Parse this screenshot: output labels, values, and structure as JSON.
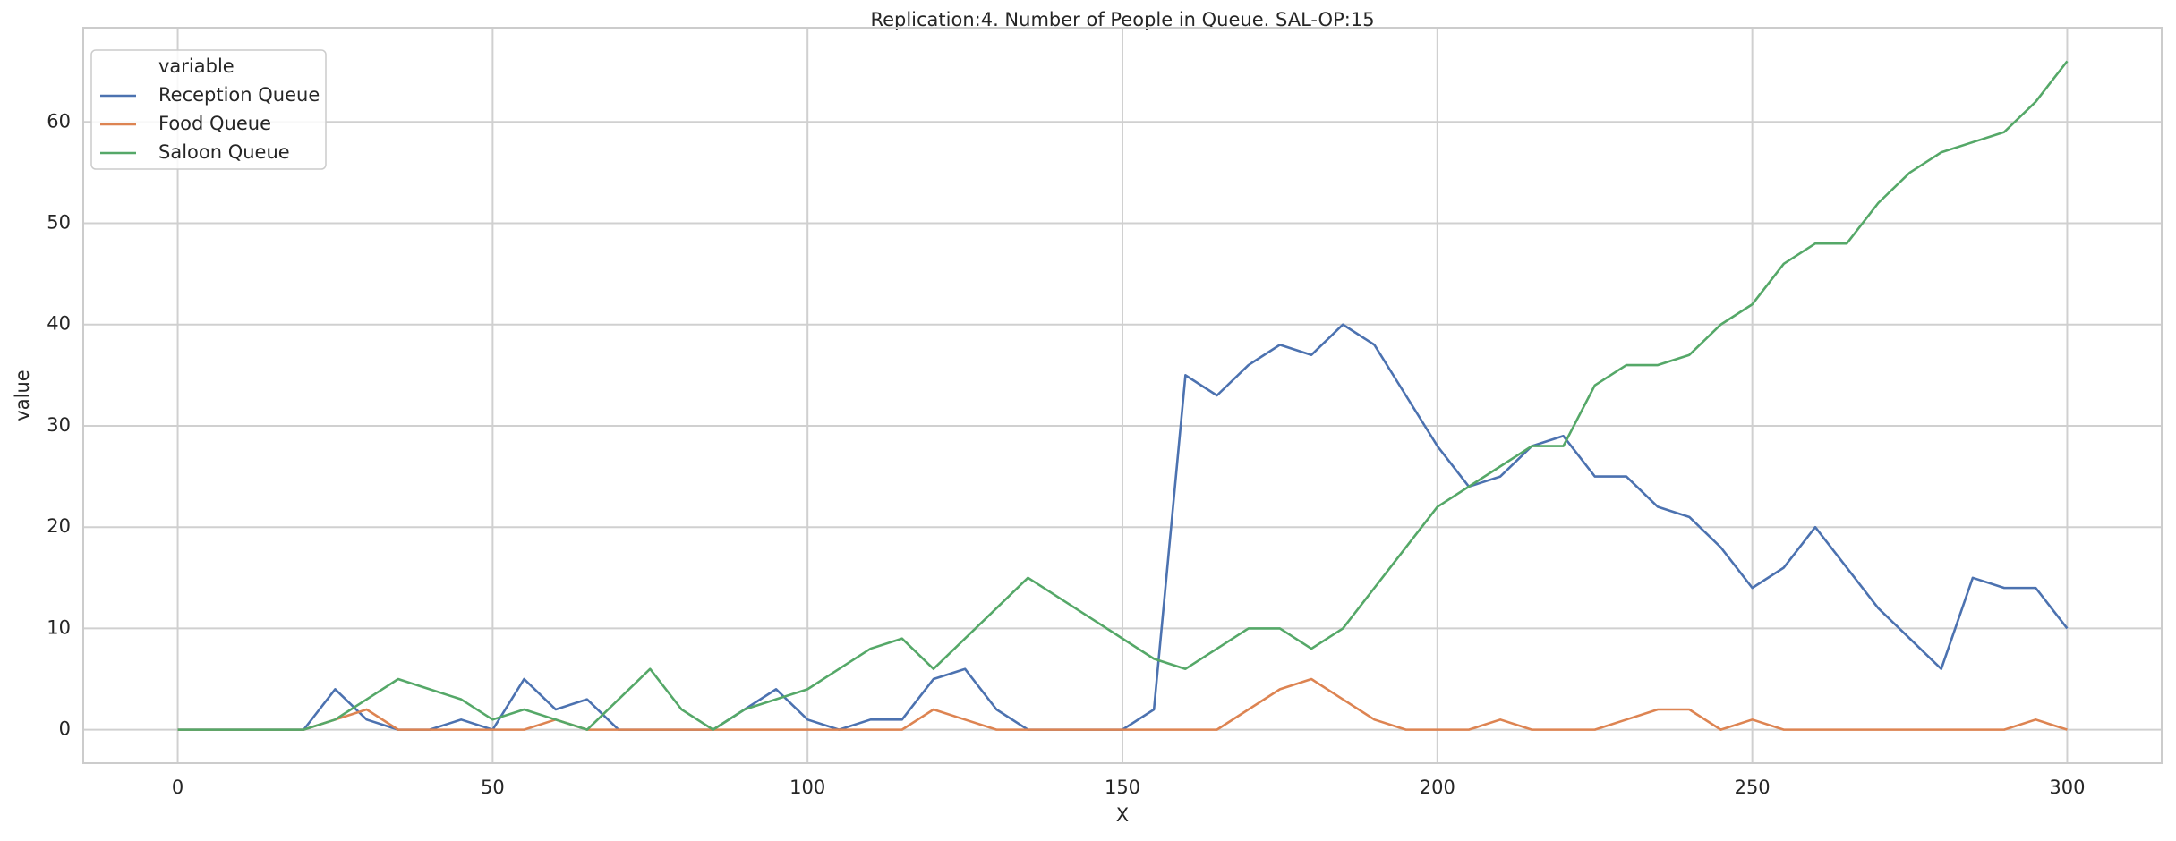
{
  "chart_data": {
    "type": "line",
    "title": "Replication:4. Number of People in Queue. SAL-OP:15",
    "x_label": "X",
    "y_label": "value",
    "legend_title": "variable",
    "legend": "upper left",
    "grid": true,
    "x": [
      0,
      5,
      10,
      15,
      20,
      25,
      30,
      35,
      40,
      45,
      50,
      55,
      60,
      65,
      70,
      75,
      80,
      85,
      90,
      95,
      100,
      105,
      110,
      115,
      120,
      125,
      130,
      135,
      140,
      145,
      150,
      155,
      160,
      165,
      170,
      175,
      180,
      185,
      190,
      195,
      200,
      205,
      210,
      215,
      220,
      225,
      230,
      235,
      240,
      245,
      250,
      255,
      260,
      265,
      270,
      275,
      280,
      285,
      290,
      295,
      300
    ],
    "series": [
      {
        "name": "Reception Queue",
        "color": "#4c72b0",
        "values": [
          0,
          0,
          0,
          0,
          0,
          4,
          1,
          0,
          0,
          1,
          0,
          5,
          2,
          3,
          0,
          0,
          0,
          0,
          2,
          4,
          1,
          0,
          1,
          1,
          5,
          6,
          2,
          0,
          0,
          0,
          0,
          2,
          35,
          33,
          36,
          38,
          37,
          40,
          38,
          33,
          28,
          24,
          25,
          28,
          29,
          25,
          25,
          22,
          21,
          18,
          14,
          16,
          20,
          16,
          12,
          9,
          6,
          15,
          14,
          14,
          10
        ]
      },
      {
        "name": "Food Queue",
        "color": "#dd8452",
        "values": [
          0,
          0,
          0,
          0,
          0,
          1,
          2,
          0,
          0,
          0,
          0,
          0,
          1,
          0,
          0,
          0,
          0,
          0,
          0,
          0,
          0,
          0,
          0,
          0,
          2,
          1,
          0,
          0,
          0,
          0,
          0,
          0,
          0,
          0,
          2,
          4,
          5,
          3,
          1,
          0,
          0,
          0,
          1,
          0,
          0,
          0,
          1,
          2,
          2,
          0,
          1,
          0,
          0,
          0,
          0,
          0,
          0,
          0,
          0,
          1,
          0
        ]
      },
      {
        "name": "Saloon Queue",
        "color": "#55a868",
        "values": [
          0,
          0,
          0,
          0,
          0,
          1,
          3,
          5,
          4,
          3,
          1,
          2,
          1,
          0,
          3,
          6,
          2,
          0,
          2,
          3,
          4,
          6,
          8,
          9,
          6,
          9,
          12,
          15,
          13,
          11,
          9,
          7,
          6,
          8,
          10,
          10,
          8,
          10,
          14,
          18,
          22,
          24,
          26,
          28,
          28,
          34,
          36,
          36,
          37,
          40,
          42,
          46,
          48,
          48,
          52,
          55,
          57,
          58,
          59,
          62,
          66
        ]
      }
    ],
    "xlim": [
      -15,
      315
    ],
    "xticks": [
      0,
      50,
      100,
      150,
      200,
      250,
      300
    ],
    "ylim": [
      -3.3,
      69.3
    ],
    "yticks": [
      0,
      10,
      20,
      30,
      40,
      50,
      60
    ]
  }
}
